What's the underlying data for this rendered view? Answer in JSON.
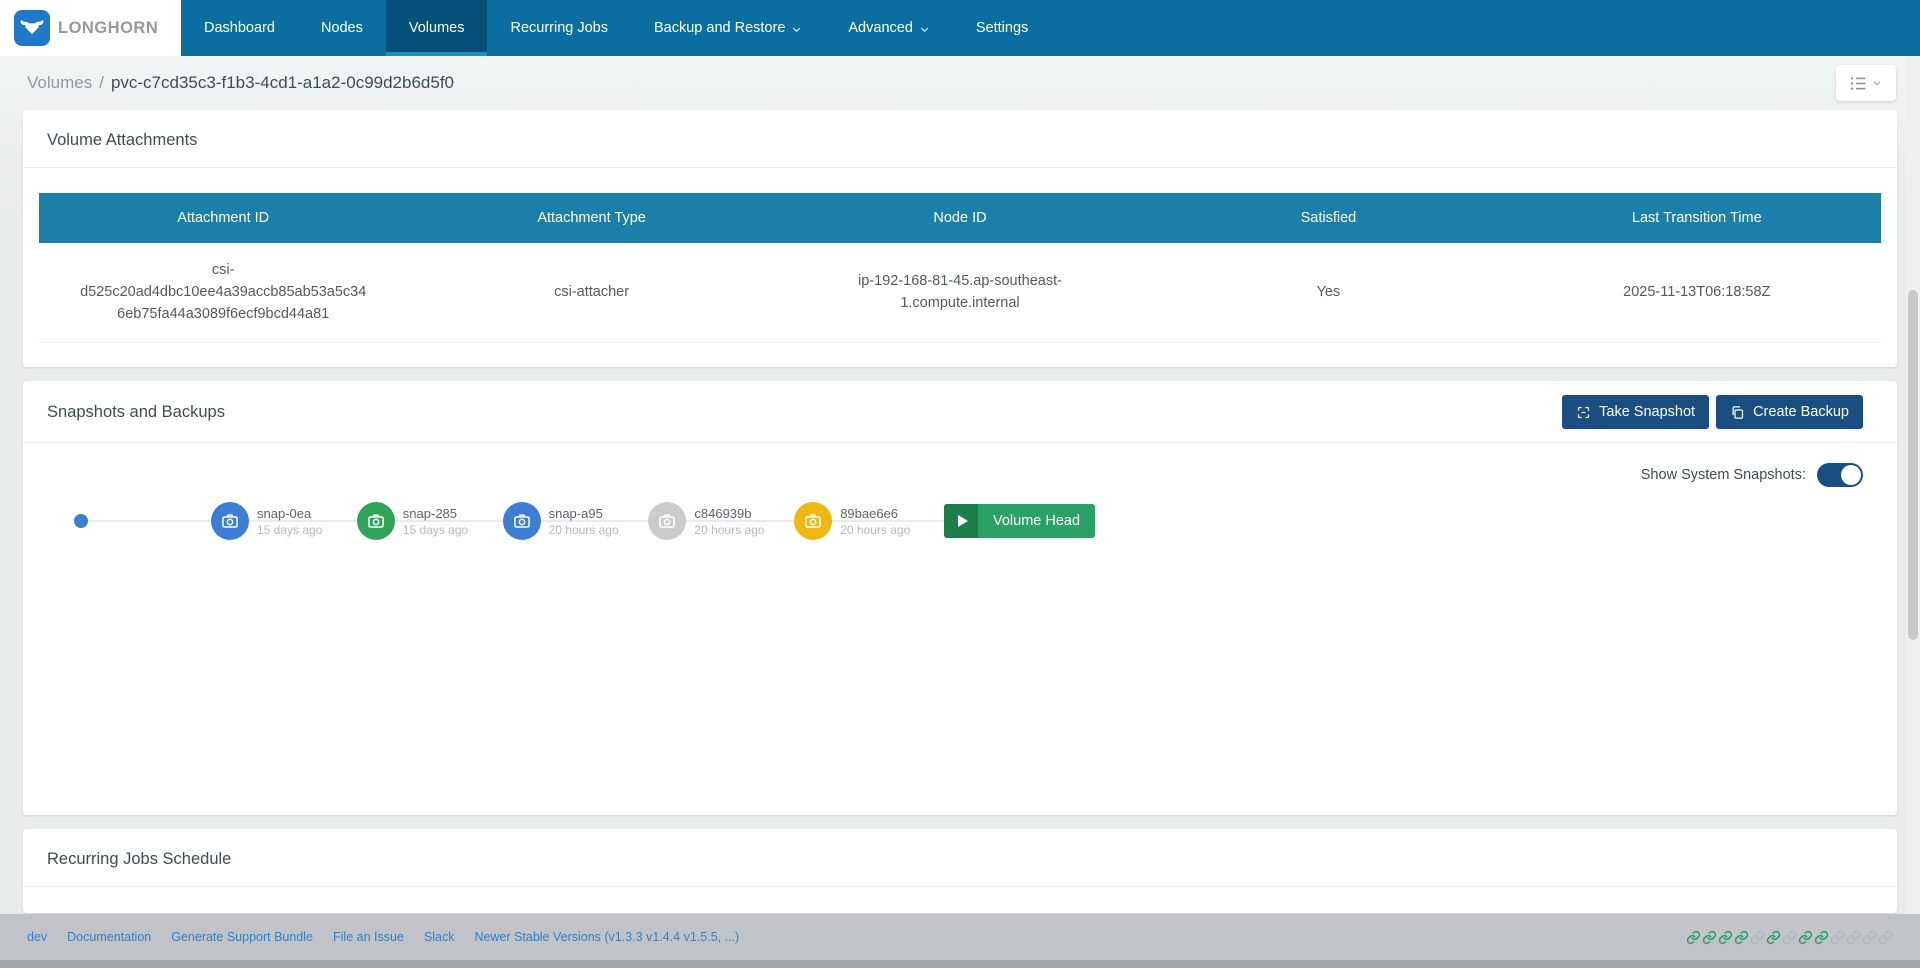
{
  "nav": {
    "brand": "LONGHORN",
    "items": [
      {
        "label": "Dashboard",
        "active": false,
        "dropdown": false
      },
      {
        "label": "Nodes",
        "active": false,
        "dropdown": false
      },
      {
        "label": "Volumes",
        "active": true,
        "dropdown": false
      },
      {
        "label": "Recurring Jobs",
        "active": false,
        "dropdown": false
      },
      {
        "label": "Backup and Restore",
        "active": false,
        "dropdown": true
      },
      {
        "label": "Advanced",
        "active": false,
        "dropdown": true
      },
      {
        "label": "Settings",
        "active": false,
        "dropdown": false
      }
    ]
  },
  "breadcrumb": {
    "section": "Volumes",
    "separator": "/",
    "volume": "pvc-c7cd35c3-f1b3-4cd1-a1a2-0c99d2b6d5f0"
  },
  "volume_attachments": {
    "title": "Volume Attachments",
    "columns": [
      "Attachment ID",
      "Attachment Type",
      "Node ID",
      "Satisfied",
      "Last Transition Time"
    ],
    "row": {
      "attachment_id": "csi-d525c20ad4dbc10ee4a39accb85ab53a5c346eb75fa44a3089f6ecf9bcd44a81",
      "attachment_type": "csi-attacher",
      "node_id": "ip-192-168-81-45.ap-southeast-1.compute.internal",
      "satisfied": "Yes",
      "last_transition_time": "2025-11-13T06:18:58Z"
    }
  },
  "snapshots": {
    "title": "Snapshots and Backups",
    "take_snapshot_label": "Take Snapshot",
    "create_backup_label": "Create Backup",
    "show_system_label": "Show System Snapshots:",
    "toggle_on": true,
    "volume_head_label": "Volume Head",
    "timeline": [
      {
        "name": "snap-0ea",
        "time": "15 days ago",
        "color": "#3d7ed2"
      },
      {
        "name": "snap-285",
        "time": "15 days ago",
        "color": "#2fa357"
      },
      {
        "name": "snap-a95",
        "time": "20 hours ago",
        "color": "#3d7ed2"
      },
      {
        "name": "c846939b",
        "time": "20 hours ago",
        "color": "#c9cbcd"
      },
      {
        "name": "89bae6e6",
        "time": "20 hours ago",
        "color": "#efb810"
      }
    ]
  },
  "recurring_jobs": {
    "title": "Recurring Jobs Schedule"
  },
  "footer": {
    "links": [
      "dev",
      "Documentation",
      "Generate Support Bundle",
      "File an Issue",
      "Slack",
      "Newer Stable Versions (v1.3.3 v1.4.4 v1.5.5, ...)"
    ],
    "chain_states": [
      "green",
      "green",
      "green",
      "green",
      "gray",
      "green",
      "gray",
      "green",
      "green",
      "gray",
      "gray",
      "gray",
      "gray"
    ]
  },
  "colors": {
    "nav_bg": "#0a6fa0",
    "nav_active": "#045079",
    "nav_underline": "#1f8fc0",
    "table_header": "#1a80aa",
    "button_navy": "#1a4e80",
    "volume_head_green": "#2ba265",
    "footer_link": "#3080c8",
    "chain_green": "#19a05a",
    "chain_gray": "#b2b6ba"
  }
}
